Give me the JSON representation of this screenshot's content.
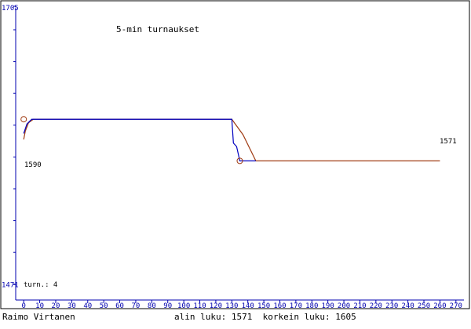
{
  "chart_data": {
    "type": "line",
    "title": "5-min turnaukset",
    "xlim": [
      -5,
      275
    ],
    "ylim": [
      1458,
      1705
    ],
    "xticks": [
      0,
      10,
      20,
      30,
      40,
      50,
      60,
      70,
      80,
      90,
      100,
      110,
      120,
      130,
      140,
      150,
      160,
      170,
      180,
      190,
      200,
      210,
      220,
      230,
      240,
      250,
      260,
      270
    ],
    "yticks": [
      1471,
      1705
    ],
    "series": [
      {
        "color": "#a03c14",
        "x": [
          0,
          1,
          3,
          6,
          130,
          137,
          145,
          260
        ],
        "values": [
          1593,
          1600,
          1607,
          1610,
          1610,
          1597,
          1575,
          1575
        ]
      },
      {
        "color": "#0000c0",
        "x": [
          0,
          2,
          5,
          130,
          131,
          133,
          135,
          145
        ],
        "values": [
          1598,
          1606,
          1610,
          1610,
          1590,
          1587,
          1575,
          1575
        ]
      }
    ],
    "markers": [
      {
        "x": 0,
        "y": 1610
      },
      {
        "x": 135,
        "y": 1575
      }
    ],
    "annotations": [
      "1590",
      "1571",
      "turn.: 4"
    ],
    "footer_left": "Raimo Virtanen",
    "footer_right": "alin luku: 1571  korkein luku: 1605"
  }
}
